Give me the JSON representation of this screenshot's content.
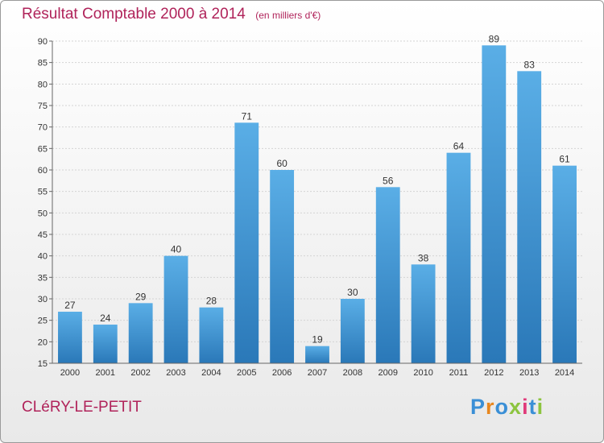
{
  "header": {
    "title": "Résultat Comptable 2000 à 2014",
    "unit": "(en milliers d'€)"
  },
  "footer": {
    "commune": "CLéRY-LE-PETIT",
    "logo_text": "Proxiti",
    "logo_colors": [
      "#3a8fd6",
      "#e8871f",
      "#3a8fd6",
      "#8cc43f",
      "#e03a7a",
      "#3a8fd6",
      "#8cc43f"
    ]
  },
  "colors": {
    "accent": "#b0235a",
    "bar_top": "#5aaee6",
    "bar_bottom": "#2a78b8"
  },
  "chart_data": {
    "type": "bar",
    "categories": [
      "2000",
      "2001",
      "2002",
      "2003",
      "2004",
      "2005",
      "2006",
      "2007",
      "2008",
      "2009",
      "2010",
      "2011",
      "2012",
      "2013",
      "2014"
    ],
    "values": [
      27,
      24,
      29,
      40,
      28,
      71,
      60,
      19,
      30,
      56,
      38,
      64,
      89,
      83,
      61
    ],
    "ylim": [
      15,
      90
    ],
    "yticks": [
      15,
      20,
      25,
      30,
      35,
      40,
      45,
      50,
      55,
      60,
      65,
      70,
      75,
      80,
      85,
      90
    ],
    "grid": true,
    "data_labels": true
  }
}
